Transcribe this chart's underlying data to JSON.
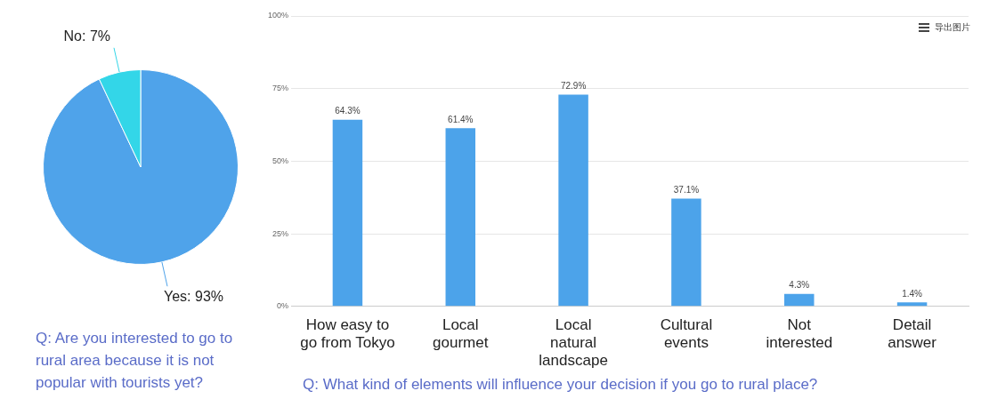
{
  "chart_data": [
    {
      "type": "pie",
      "title": "Q: Are you interested to go to rural area because it is not popular with tourists yet?",
      "categories": [
        "Yes",
        "No"
      ],
      "values": [
        93,
        7
      ],
      "colors": [
        "#4fa3ea",
        "#33d6e8"
      ],
      "value_labels": [
        "93%",
        "7%"
      ],
      "legend": false
    },
    {
      "type": "bar",
      "title": "Q: What kind of elements will influence your decision if you go to rural place?",
      "categories": [
        "How easy to\ngo from Tokyo",
        "Local\ngourmet",
        "Local\nnatural\nlandscape",
        "Cultural\nevents",
        "Not\ninterested",
        "Detail\nanswer"
      ],
      "values": [
        64.3,
        61.4,
        72.9,
        37.1,
        4.3,
        1.4
      ],
      "color": "#4ca3ea",
      "value_labels": [
        "64.3%",
        "61.4%",
        "72.9%",
        "37.1%",
        "4.3%",
        "1.4%"
      ],
      "ylim": [
        0,
        100
      ],
      "yticks": [
        {
          "value": 0,
          "label": "0%"
        },
        {
          "value": 25,
          "label": "25%"
        },
        {
          "value": 50,
          "label": "50%"
        },
        {
          "value": 75,
          "label": "75%"
        },
        {
          "value": 100,
          "label": "100%"
        }
      ],
      "grid": "y",
      "legend": false,
      "annotations": [
        "导出图片"
      ]
    }
  ]
}
